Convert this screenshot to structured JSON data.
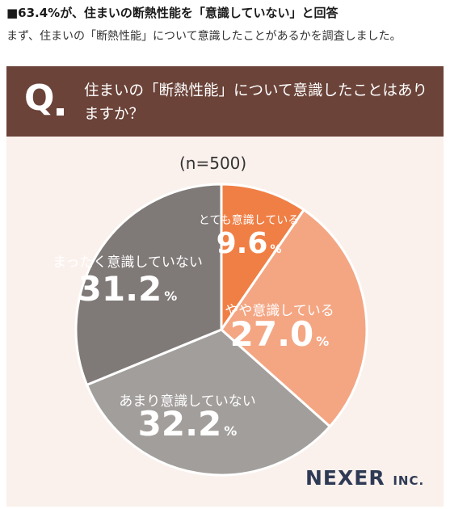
{
  "header": {
    "headline": "■63.4%が、住まいの断熱性能を「意識していない」と回答",
    "subline": "まず、住まいの「断熱性能」について意識したことがあるかを調査しました。"
  },
  "question": {
    "mark": "Q",
    "text": "住まいの「断熱性能」について意識したことはありますか？"
  },
  "chart_data": {
    "type": "pie",
    "subtitle": "(n=500)",
    "unit": "%",
    "slices": [
      {
        "label": "とても意識している",
        "value": 9.6,
        "color": "#f07f45",
        "display": "9.6"
      },
      {
        "label": "やや意識している",
        "value": 27.0,
        "color": "#f4a683",
        "display": "27.0"
      },
      {
        "label": "あまり意識していない",
        "value": 32.2,
        "color": "#a29e9c",
        "display": "32.2"
      },
      {
        "label": "まったく意識していない",
        "value": 31.2,
        "color": "#7f7977",
        "display": "31.2"
      }
    ]
  },
  "logo": {
    "name": "NEXER",
    "suffix": "INC."
  }
}
